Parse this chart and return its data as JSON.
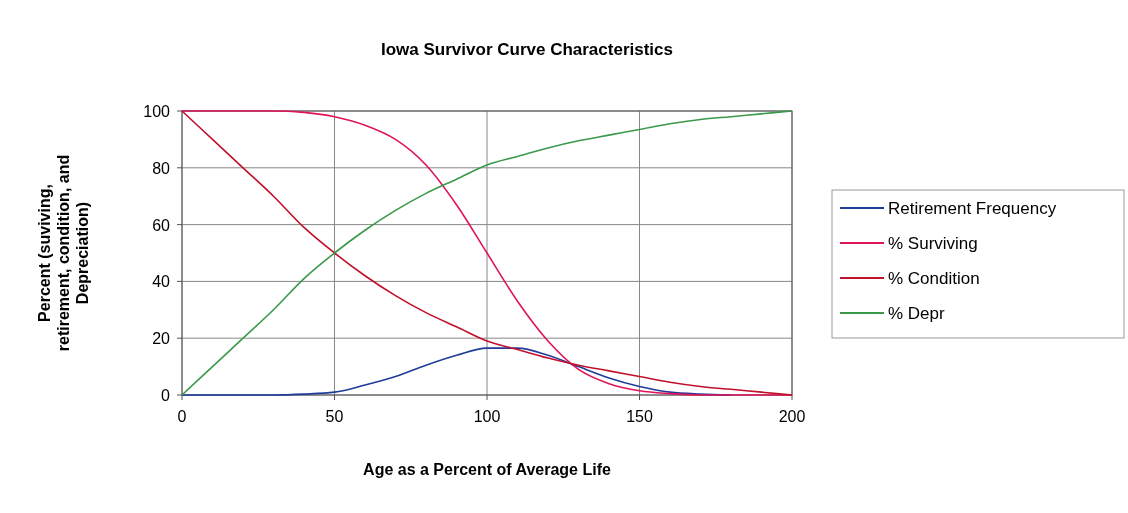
{
  "chart_data": {
    "type": "line",
    "title": "Iowa Survivor Curve Characteristics",
    "xlabel": "Age as a Percent of Average Life",
    "ylabel": "Percent (suviving, retirement, condition, and Depreciation)",
    "x": [
      0,
      10,
      20,
      30,
      40,
      50,
      60,
      70,
      80,
      90,
      100,
      110,
      120,
      130,
      140,
      150,
      160,
      170,
      180,
      190,
      200
    ],
    "series": [
      {
        "name": "Retirement Frequency",
        "color": "#1f3c9a",
        "values": [
          0,
          0,
          0,
          0,
          0.3,
          1,
          3.5,
          6.5,
          10.5,
          14,
          16.5,
          16.5,
          14,
          10,
          6,
          3,
          1,
          0.3,
          0,
          null,
          null
        ]
      },
      {
        "name": "% Surviving",
        "color": "#e0145a",
        "values": [
          100,
          100,
          100,
          100,
          99.5,
          98,
          95,
          90,
          81,
          67,
          50,
          33,
          19,
          9,
          4,
          1.5,
          0.5,
          0,
          0,
          0,
          0
        ]
      },
      {
        "name": "% Condition",
        "color": "#c0102a",
        "values": [
          100,
          90,
          80,
          70,
          59,
          50,
          42,
          35,
          29,
          24,
          19,
          16,
          13,
          10.5,
          8.5,
          6.5,
          4.5,
          3,
          2,
          1,
          0
        ]
      },
      {
        "name": "% Depr",
        "color": "#3a9a4a",
        "values": [
          0,
          10,
          20,
          30,
          41,
          50,
          58,
          65,
          71,
          76,
          81,
          84,
          87,
          89.5,
          91.5,
          93.5,
          95.5,
          97,
          98,
          99,
          100
        ]
      }
    ],
    "xlim": [
      0,
      200
    ],
    "xticks": [
      0,
      50,
      100,
      150,
      200
    ],
    "ylim": [
      0,
      100
    ],
    "yticks": [
      0,
      20,
      40,
      60,
      80,
      100
    ],
    "grid": true,
    "legend": "right",
    "marker": "none",
    "line_style": "solid"
  }
}
